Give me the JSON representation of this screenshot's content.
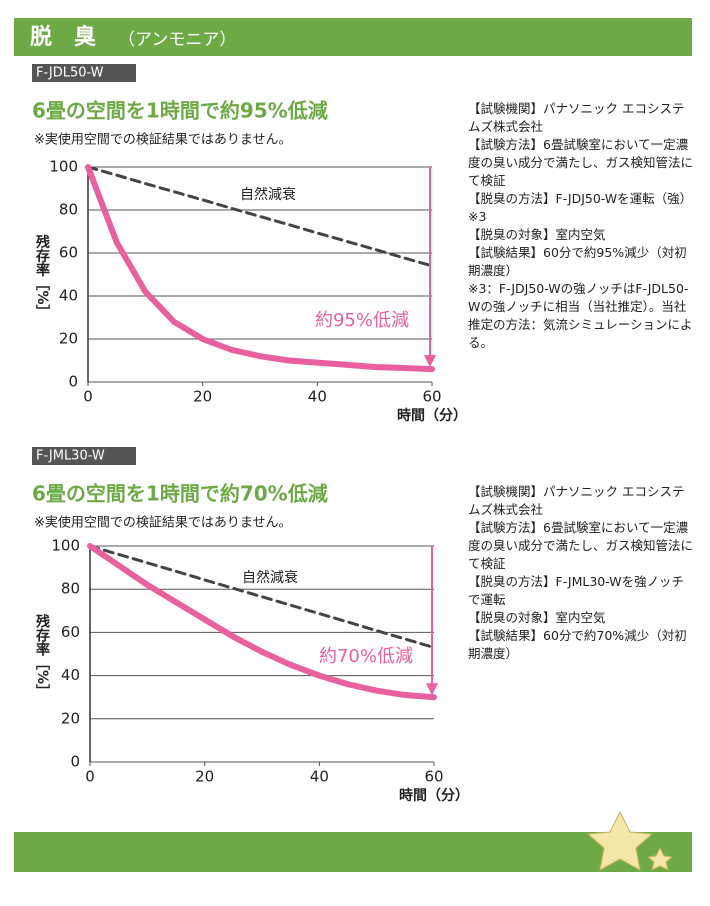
{
  "header": {
    "title": "脱　臭",
    "subtitle": "（アンモニア）"
  },
  "chart_data": [
    {
      "type": "line",
      "model": "F-JDL50-W",
      "title": "6畳の空間を1時間で約95%低減",
      "note": "※実使用空間での検証結果ではありません。",
      "y_label": "残存率［%］",
      "x_label": "時間（分）",
      "x": [
        0,
        5,
        10,
        15,
        20,
        25,
        30,
        35,
        40,
        45,
        50,
        55,
        60
      ],
      "series": [
        {
          "name": "自然減衰",
          "color": "#444444",
          "dashed": true,
          "values": [
            100,
            96.2,
            92.3,
            88.5,
            84.7,
            80.8,
            77,
            73.2,
            69.3,
            65.5,
            61.7,
            57.8,
            54
          ]
        },
        {
          "color": "#e8609e",
          "values": [
            100,
            65,
            42,
            28,
            20,
            15,
            12,
            10,
            9,
            8,
            7,
            6.5,
            6
          ]
        }
      ],
      "annotation": "約95%低減",
      "xlim": [
        0,
        60
      ],
      "xticks": [
        0,
        20,
        40,
        60
      ],
      "ylim": [
        0,
        100
      ],
      "yticks": [
        0,
        20,
        40,
        60,
        80,
        100
      ],
      "grid": true,
      "info": [
        "【試験機関】パナソニック エコシステムズ株式会社",
        "【試験方法】6畳試験室において一定濃度の臭い成分で満たし、ガス検知管法にて検証",
        "【脱臭の方法】F-JDJ50-Wを運転（強）※3",
        "【脱臭の対象】室内空気",
        "【試験結果】60分で約95%減少（対初期濃度）",
        "※3：F-JDJ50-Wの強ノッチはF-JDL50-Wの強ノッチに相当（当社推定）。当社推定の方法：気流シミュレーションによる。"
      ]
    },
    {
      "type": "line",
      "model": "F-JML30-W",
      "title": "6畳の空間を1時間で約70%低減",
      "note": "※実使用空間での検証結果ではありません。",
      "y_label": "残存率［%］",
      "x_label": "時間（分）",
      "x": [
        0,
        5,
        10,
        15,
        20,
        25,
        30,
        35,
        40,
        45,
        50,
        55,
        60
      ],
      "series": [
        {
          "name": "自然減衰",
          "color": "#444444",
          "dashed": true,
          "values": [
            100,
            96.1,
            92.2,
            88.3,
            84.3,
            80.4,
            76.5,
            72.6,
            68.7,
            64.8,
            60.8,
            56.9,
            53
          ]
        },
        {
          "color": "#e8609e",
          "values": [
            100,
            91,
            82,
            74,
            66,
            58,
            51,
            45,
            40,
            36,
            33,
            31,
            30
          ]
        }
      ],
      "annotation": "約70%低減",
      "xlim": [
        0,
        60
      ],
      "xticks": [
        0,
        20,
        40,
        60
      ],
      "ylim": [
        0,
        100
      ],
      "yticks": [
        0,
        20,
        40,
        60,
        80,
        100
      ],
      "grid": true,
      "info": [
        "【試験機関】パナソニック エコシステムズ株式会社",
        "【試験方法】6畳試験室において一定濃度の臭い成分で満たし、ガス検知管法にて検証",
        "【脱臭の方法】F-JML30-Wを強ノッチで運転",
        "【脱臭の対象】室内空気",
        "【試験結果】60分で約70%減少（対初期濃度）"
      ]
    }
  ]
}
